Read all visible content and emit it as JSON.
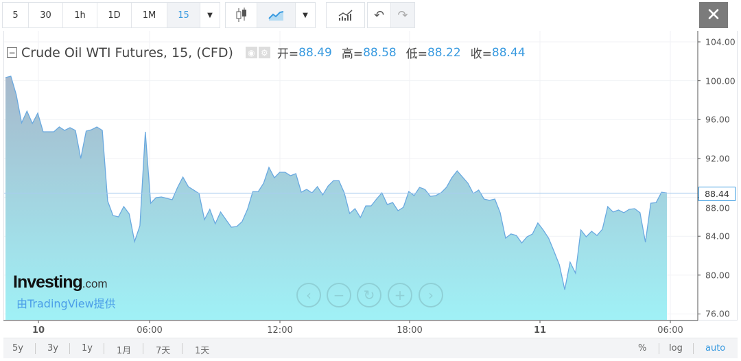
{
  "toolbar": {
    "intervals": [
      "5",
      "30",
      "1h",
      "1D",
      "1M",
      "15"
    ],
    "active_interval": "15",
    "icons": [
      "dropdown-icon",
      "candlestick-icon",
      "area-chart-icon",
      "dropdown-icon",
      "indicators-icon",
      "undo-icon",
      "redo-icon"
    ],
    "close": "✕"
  },
  "legend": {
    "title": "Crude Oil WTI Futures, 15, (CFD)",
    "open_label": "开=",
    "open": "88.49",
    "high_label": "高=",
    "high": "88.58",
    "low_label": "低=",
    "low": "88.22",
    "close_label": "收=",
    "close": "88.44"
  },
  "watermark": {
    "logo": "Investing",
    "logo_suffix": ".com",
    "sub": "由TradingView提供"
  },
  "bottom": {
    "ranges": [
      "5y",
      "3y",
      "1y",
      "1月",
      "7天",
      "1天"
    ],
    "percent": "%",
    "log": "log",
    "auto": "auto"
  },
  "colors": {
    "accent": "#3a9be0",
    "line": "#6aa9e0",
    "fill_top": "#a6b8cb",
    "fill_bottom": "#a0f1f6"
  },
  "chart_data": {
    "type": "area",
    "title": "Crude Oil WTI Futures, 15, (CFD)",
    "interval": "15 min",
    "x_ticks": [
      "10",
      "06:00",
      "12:00",
      "18:00",
      "11",
      "06:00"
    ],
    "y_ticks": [
      "104.00",
      "100.00",
      "96.00",
      "92.00",
      "88.00",
      "84.00",
      "80.00",
      "76.00"
    ],
    "ylim": [
      75.5,
      105
    ],
    "last_price": "88.44",
    "grid": true,
    "values": [
      100.33,
      100.47,
      98.56,
      95.67,
      96.87,
      95.6,
      96.66,
      94.75,
      94.75,
      94.75,
      95.24,
      94.89,
      95.17,
      94.89,
      92.0,
      94.82,
      94.96,
      95.24,
      94.89,
      87.62,
      86.13,
      85.99,
      87.05,
      86.3,
      83.45,
      85.07,
      94.75,
      87.4,
      87.97,
      88.04,
      87.9,
      87.76,
      89.03,
      90.09,
      89.1,
      88.75,
      88.39,
      85.71,
      86.77,
      85.28,
      86.49,
      85.71,
      84.93,
      85.0,
      85.5,
      86.77,
      88.6,
      88.6,
      89.45,
      91.08,
      90.02,
      90.58,
      90.58,
      90.23,
      90.44,
      88.53,
      88.82,
      88.46,
      89.1,
      88.25,
      89.17,
      89.73,
      89.73,
      88.46,
      86.34,
      86.84,
      85.92,
      87.12,
      87.12,
      87.83,
      88.46,
      87.26,
      87.47,
      86.63,
      86.98,
      88.6,
      88.18,
      89.03,
      88.82,
      88.11,
      88.18,
      88.46,
      89.03,
      90.02,
      90.72,
      90.09,
      89.45,
      88.39,
      88.75,
      87.83,
      87.69,
      87.83,
      86.42,
      83.8,
      84.23,
      84.08,
      83.31,
      83.94,
      84.23,
      85.36,
      84.65,
      83.8,
      82.46,
      81.05,
      78.5,
      81.33,
      80.2,
      84.65,
      83.94,
      84.51,
      84.08,
      84.72,
      87.05,
      86.49,
      86.7,
      86.42,
      86.77,
      86.84,
      86.42,
      83.38,
      87.4,
      87.47,
      88.53,
      88.44
    ]
  }
}
